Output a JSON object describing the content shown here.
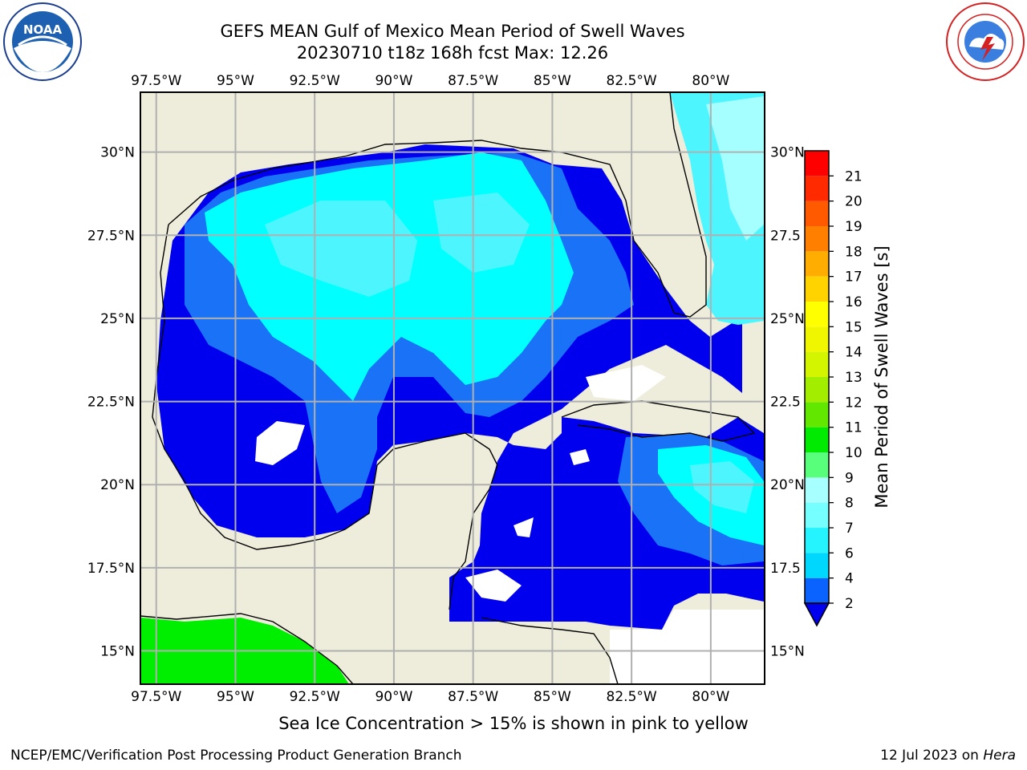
{
  "title_line1": "GEFS MEAN Gulf of Mexico Mean Period of Swell Waves",
  "title_line2": "20230710 t18z 168h fcst   Max: 12.26",
  "note": "Sea Ice Concentration > 15% is shown in pink to yellow",
  "footer_left": "NCEP/EMC/Verification Post Processing Product Generation Branch",
  "footer_date": "12 Jul 2023 on ",
  "footer_host": "Hera",
  "logos": {
    "left_icon": "noaa-logo-icon",
    "right_icon": "nws-logo-icon"
  },
  "map": {
    "lon_labels": [
      "97.5°W",
      "95°W",
      "92.5°W",
      "90°W",
      "87.5°W",
      "85°W",
      "82.5°W",
      "80°W"
    ],
    "lat_labels_left": [
      "30°N",
      "27.5°N",
      "25°N",
      "22.5°N",
      "20°N",
      "17.5°N",
      "15°N"
    ],
    "lat_labels_right": [
      "30°N",
      "27.5",
      "25°N",
      "22.5",
      "20°N",
      "17.5",
      "15°N"
    ],
    "lon_range": [
      -98,
      -78.3
    ],
    "lat_range": [
      14.0,
      31.8
    ],
    "land_color": "#eeecda",
    "grid_color": "#b0b0b0"
  },
  "colorbar": {
    "label": "Mean Period of Swell Waves [s]",
    "tick_labels": [
      "2",
      "4",
      "6",
      "7",
      "8",
      "9",
      "10",
      "11",
      "12",
      "13",
      "14",
      "15",
      "16",
      "17",
      "18",
      "19",
      "20",
      "21"
    ],
    "colors": [
      "#0a63ff",
      "#00d7ff",
      "#25f4ff",
      "#76ffff",
      "#a8ffff",
      "#57ff7a",
      "#01ea01",
      "#62e800",
      "#a3ee00",
      "#d4f500",
      "#f0f500",
      "#ffff00",
      "#ffd300",
      "#ffad00",
      "#ff8000",
      "#ff5a00",
      "#ff2a00",
      "#ff0000"
    ],
    "extend_color": "#0000ee"
  },
  "legend_colors": {
    "deep_blue": "#0000ee",
    "mid_blue": "#1a72f7",
    "cyan": "#00ffff",
    "light_cyan": "#4df5ff",
    "pale_cyan": "#a6ffff",
    "green": "#00ee00"
  }
}
